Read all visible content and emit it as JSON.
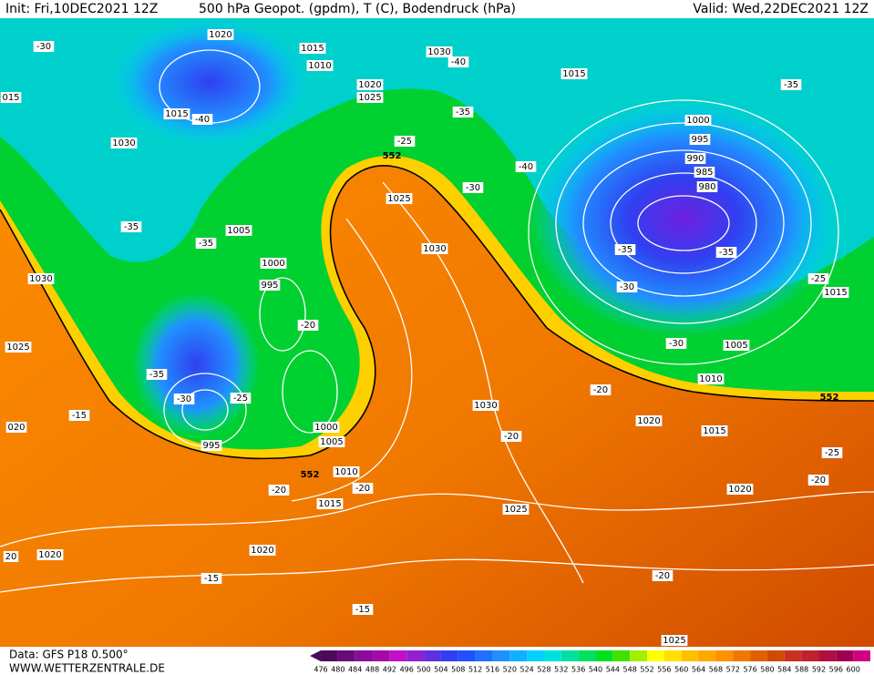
{
  "header": {
    "init": "Init: Fri,10DEC2021 12Z",
    "title": "500 hPa Geopot. (gpdm), T (C), Bodendruck (hPa)",
    "valid": "Valid: Wed,22DEC2021 12Z"
  },
  "map": {
    "pressure_labels": [
      "1020",
      "1015",
      "1010",
      "1030",
      "1015",
      "1020",
      "1025",
      "1015",
      "1030",
      "1000",
      "995",
      "990",
      "985",
      "980",
      "1025",
      "1005",
      "1030",
      "1030",
      "1000",
      "995",
      "1015",
      "1025",
      "1005",
      "1010",
      "1030",
      "1020",
      "1000",
      "1015",
      "1005",
      "995",
      "1010",
      "1020",
      "1015",
      "1025",
      "1020",
      "1020",
      "1025",
      "015",
      "020",
      "20"
    ],
    "temperature_labels": [
      "-30",
      "-40",
      "-35",
      "-40",
      "-35",
      "-25",
      "-40",
      "-30",
      "-35",
      "-35",
      "-35",
      "-35",
      "-25",
      "-30",
      "-20",
      "-30",
      "-35",
      "-30",
      "-25",
      "-20",
      "-15",
      "-20",
      "-20",
      "-20",
      "-25",
      "-20",
      "-15",
      "-20",
      "-15"
    ],
    "height_labels": [
      "552",
      "552",
      "552"
    ]
  },
  "footer": {
    "data_source": "Data: GFS P18 0.500°",
    "website": "WWW.WETTERZENTRALE.DE"
  },
  "colorbar": {
    "levels": [
      476,
      480,
      484,
      488,
      492,
      496,
      500,
      504,
      508,
      512,
      516,
      520,
      524,
      528,
      532,
      536,
      540,
      544,
      548,
      552,
      556,
      560,
      564,
      568,
      572,
      576,
      580,
      584,
      588,
      592,
      596,
      600
    ],
    "colors": [
      "#4b0a5a",
      "#6a0a7a",
      "#8a0a9a",
      "#a40aaa",
      "#c010c8",
      "#9020d0",
      "#6030e0",
      "#3040f0",
      "#2050ff",
      "#2070ff",
      "#2090ff",
      "#10b0ff",
      "#00d0ff",
      "#00e0e0",
      "#00e0a0",
      "#00e060",
      "#00e020",
      "#40e000",
      "#a0f000",
      "#ffff00",
      "#ffe000",
      "#ffc000",
      "#ffa800",
      "#ff9000",
      "#f07800",
      "#e06000",
      "#d04a00",
      "#c83020",
      "#c02030",
      "#b01040",
      "#a00050",
      "#d00080"
    ]
  }
}
